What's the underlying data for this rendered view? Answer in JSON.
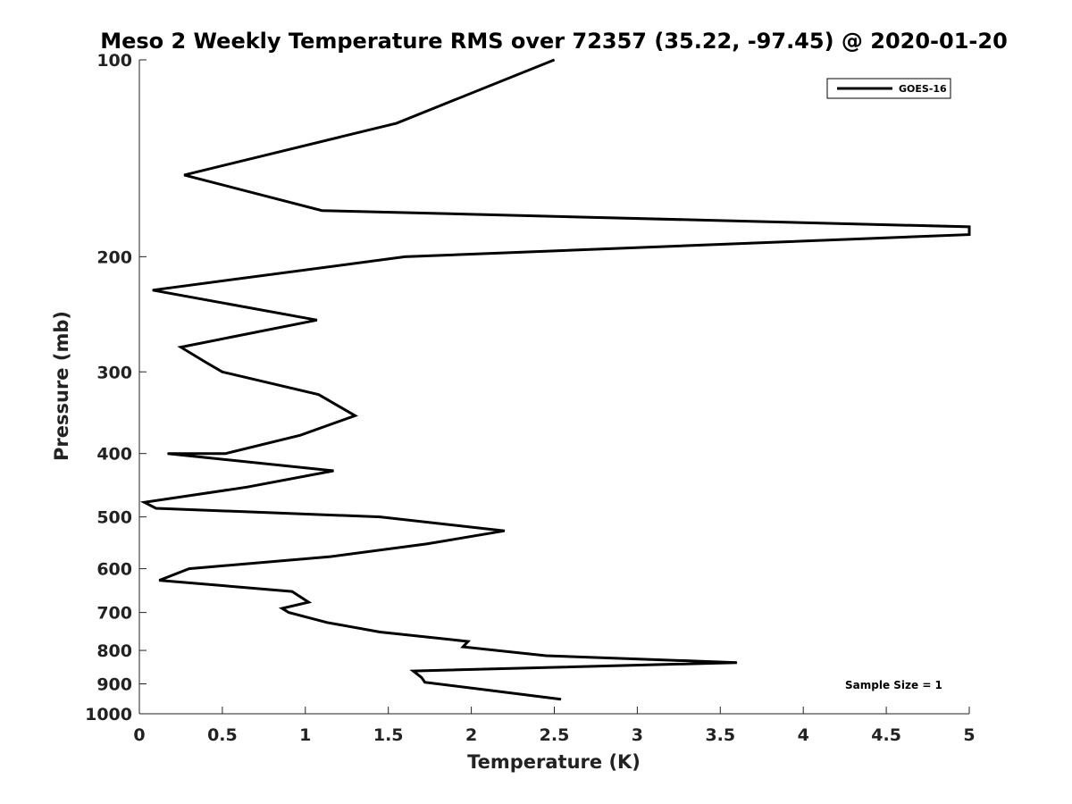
{
  "chart_data": {
    "type": "line",
    "title": "Meso 2 Weekly Temperature RMS over 72357 (35.22, -97.45) @ 2020-01-20",
    "xlabel": "Temperature (K)",
    "ylabel": "Pressure (mb)",
    "xlim": [
      0,
      5
    ],
    "ylim": [
      100,
      1000
    ],
    "y_scale": "log",
    "y_reversed": true,
    "grid": false,
    "legend_position": "top-right",
    "x_ticks": [
      "0",
      "0.5",
      "1",
      "1.5",
      "2",
      "2.5",
      "3",
      "3.5",
      "4",
      "4.5",
      "5"
    ],
    "y_ticks": [
      "100",
      "200",
      "300",
      "400",
      "500",
      "600",
      "700",
      "800",
      "900",
      "1000"
    ],
    "series": [
      {
        "name": "GOES-16",
        "color": "#000000",
        "points": [
          [
            2.5,
            100
          ],
          [
            1.55,
            125
          ],
          [
            0.27,
            150
          ],
          [
            1.1,
            170
          ],
          [
            5.0,
            180
          ],
          [
            5.0,
            185
          ],
          [
            1.6,
            200
          ],
          [
            0.08,
            225
          ],
          [
            1.07,
            250
          ],
          [
            0.25,
            275
          ],
          [
            0.4,
            290
          ],
          [
            0.5,
            300
          ],
          [
            1.08,
            325
          ],
          [
            1.3,
            350
          ],
          [
            0.97,
            375
          ],
          [
            0.52,
            400
          ],
          [
            0.17,
            400
          ],
          [
            1.17,
            425
          ],
          [
            0.65,
            450
          ],
          [
            0.03,
            475
          ],
          [
            0.1,
            485
          ],
          [
            1.45,
            500
          ],
          [
            2.2,
            525
          ],
          [
            1.73,
            550
          ],
          [
            1.15,
            575
          ],
          [
            0.3,
            600
          ],
          [
            0.12,
            625
          ],
          [
            0.92,
            650
          ],
          [
            1.02,
            675
          ],
          [
            0.86,
            690
          ],
          [
            0.9,
            700
          ],
          [
            1.13,
            725
          ],
          [
            1.45,
            750
          ],
          [
            1.98,
            775
          ],
          [
            1.95,
            790
          ],
          [
            2.45,
            815
          ],
          [
            3.6,
            835
          ],
          [
            1.65,
            860
          ],
          [
            1.7,
            880
          ],
          [
            1.72,
            895
          ],
          [
            2.1,
            920
          ],
          [
            2.54,
            950
          ]
        ]
      }
    ],
    "annotations": [
      {
        "text": "Sample Size = 1"
      }
    ]
  }
}
